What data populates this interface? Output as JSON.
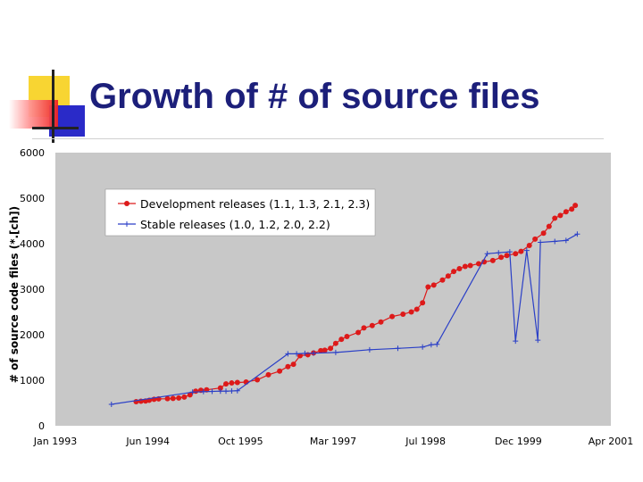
{
  "slide": {
    "title": "Growth of # of source files"
  },
  "colors": {
    "plot_background": "#c8c8c8",
    "dev_series": "#dd1a1a",
    "stable_series": "#2a3fc7",
    "title": "#1c1f7a"
  },
  "chart_data": {
    "type": "line",
    "title": "",
    "xlabel": "",
    "ylabel": "# of source code files (*.[ch])",
    "ylim": [
      0,
      6000
    ],
    "xlim": [
      "1993-01",
      "2001-04"
    ],
    "x_tick_labels": [
      "Jan 1993",
      "Jun 1994",
      "Oct 1995",
      "Mar 1997",
      "Jul 1998",
      "Dec 1999",
      "Apr 2001"
    ],
    "y_tick_labels": [
      "0",
      "1000",
      "2000",
      "3000",
      "4000",
      "5000",
      "6000"
    ],
    "legend": "top-left",
    "grid": false,
    "series": [
      {
        "name": "Development releases (1.1, 1.3, 2.1, 2.3)",
        "marker": "circle",
        "points": [
          [
            "1994-03-15",
            530
          ],
          [
            "1994-04-10",
            540
          ],
          [
            "1994-05-05",
            545
          ],
          [
            "1994-05-25",
            560
          ],
          [
            "1994-06-20",
            580
          ],
          [
            "1994-07-15",
            590
          ],
          [
            "1994-09-01",
            595
          ],
          [
            "1994-10-01",
            600
          ],
          [
            "1994-11-01",
            610
          ],
          [
            "1994-12-01",
            630
          ],
          [
            "1995-01-01",
            680
          ],
          [
            "1995-02-01",
            760
          ],
          [
            "1995-03-01",
            780
          ],
          [
            "1995-04-01",
            790
          ],
          [
            "1995-06-15",
            830
          ],
          [
            "1995-07-15",
            920
          ],
          [
            "1995-08-15",
            940
          ],
          [
            "1995-09-15",
            950
          ],
          [
            "1995-11-01",
            960
          ],
          [
            "1996-01-01",
            1010
          ],
          [
            "1996-03-01",
            1120
          ],
          [
            "1996-05-01",
            1200
          ],
          [
            "1996-06-15",
            1300
          ],
          [
            "1996-07-15",
            1350
          ],
          [
            "1996-08-20",
            1540
          ],
          [
            "1996-10-01",
            1560
          ],
          [
            "1996-11-01",
            1600
          ],
          [
            "1996-12-10",
            1650
          ],
          [
            "1997-01-01",
            1660
          ],
          [
            "1997-02-01",
            1700
          ],
          [
            "1997-03-01",
            1810
          ],
          [
            "1997-04-01",
            1900
          ],
          [
            "1997-05-01",
            1960
          ],
          [
            "1997-07-01",
            2050
          ],
          [
            "1997-08-01",
            2150
          ],
          [
            "1997-09-15",
            2200
          ],
          [
            "1997-11-01",
            2280
          ],
          [
            "1998-01-01",
            2400
          ],
          [
            "1998-03-01",
            2450
          ],
          [
            "1998-04-15",
            2500
          ],
          [
            "1998-05-15",
            2560
          ],
          [
            "1998-06-15",
            2700
          ],
          [
            "1998-07-15",
            3050
          ],
          [
            "1998-08-15",
            3090
          ],
          [
            "1998-10-01",
            3200
          ],
          [
            "1998-11-01",
            3290
          ],
          [
            "1998-12-01",
            3390
          ],
          [
            "1999-01-01",
            3450
          ],
          [
            "1999-02-01",
            3500
          ],
          [
            "1999-03-01",
            3520
          ],
          [
            "1999-04-15",
            3560
          ],
          [
            "1999-05-15",
            3600
          ],
          [
            "1999-07-01",
            3630
          ],
          [
            "1999-08-15",
            3700
          ],
          [
            "1999-09-15",
            3740
          ],
          [
            "1999-11-01",
            3780
          ],
          [
            "1999-12-01",
            3830
          ],
          [
            "2000-01-15",
            3960
          ],
          [
            "2000-02-15",
            4100
          ],
          [
            "2000-04-01",
            4230
          ],
          [
            "2000-05-01",
            4380
          ],
          [
            "2000-06-01",
            4560
          ],
          [
            "2000-07-01",
            4620
          ],
          [
            "2000-08-01",
            4700
          ],
          [
            "2000-09-01",
            4760
          ],
          [
            "2000-09-20",
            4840
          ]
        ]
      },
      {
        "name": "Stable releases (1.0, 1.2, 2.0, 2.2)",
        "marker": "plus",
        "points": [
          [
            "1993-11-01",
            470
          ],
          [
            "1995-01-15",
            740
          ],
          [
            "1995-03-15",
            750
          ],
          [
            "1995-05-01",
            755
          ],
          [
            "1995-06-15",
            760
          ],
          [
            "1995-07-15",
            760
          ],
          [
            "1995-08-15",
            765
          ],
          [
            "1995-09-15",
            770
          ],
          [
            "1996-06-15",
            1580
          ],
          [
            "1996-08-01",
            1580
          ],
          [
            "1996-09-15",
            1590
          ],
          [
            "1996-11-01",
            1595
          ],
          [
            "1997-03-01",
            1610
          ],
          [
            "1997-09-01",
            1670
          ],
          [
            "1998-02-01",
            1700
          ],
          [
            "1998-06-15",
            1730
          ],
          [
            "1998-08-01",
            1780
          ],
          [
            "1998-09-01",
            1790
          ],
          [
            "1999-11-01",
            1860
          ],
          [
            "2000-03-01",
            1880
          ],
          [
            "1999-06-01",
            3780
          ],
          [
            "1999-08-01",
            3800
          ],
          [
            "1999-10-01",
            3820
          ],
          [
            "2000-01-01",
            3850
          ],
          [
            "2000-03-15",
            4030
          ],
          [
            "2000-06-01",
            4050
          ],
          [
            "2000-08-01",
            4070
          ],
          [
            "2000-10-01",
            4210
          ]
        ]
      }
    ]
  }
}
